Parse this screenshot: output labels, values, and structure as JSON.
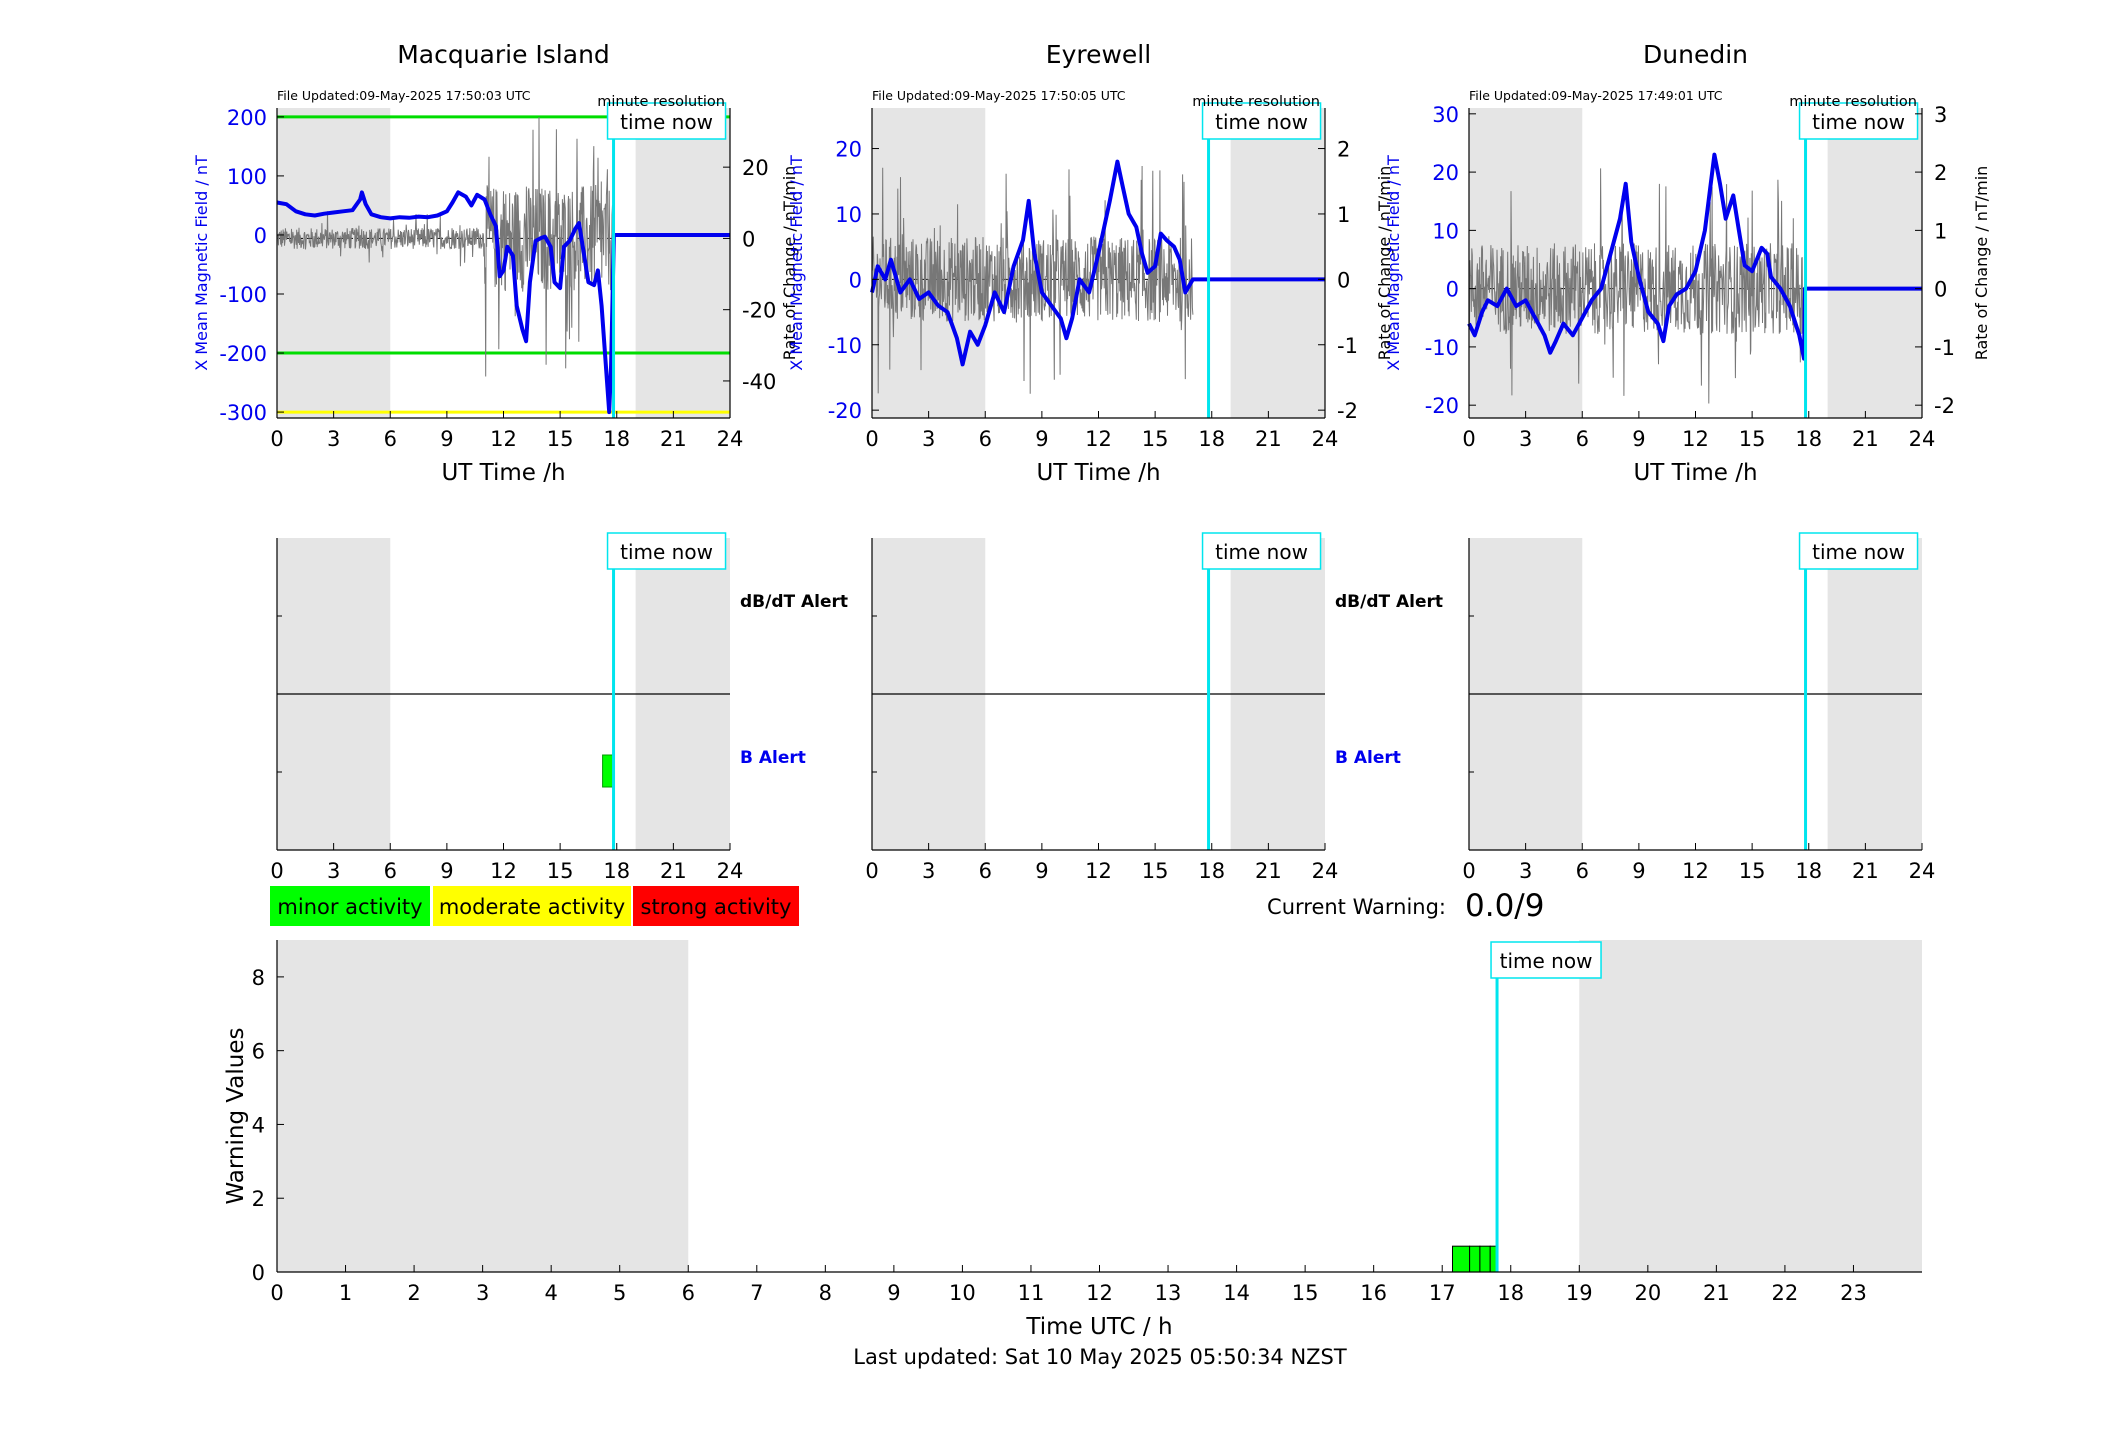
{
  "stations": [
    {
      "name": "Macquarie Island",
      "file_updated": "File Updated:09-May-2025 17:50:03 UTC",
      "resolution": "minute resolution",
      "time_now_label": "time now",
      "ylabel_left": "X Mean Magnetic Field / nT",
      "ylabel_right": "Rate of Change / nT/min",
      "xlabel": "UT Time /h",
      "dbdt_alert_label": "dB/dT Alert",
      "b_alert_label": "B Alert"
    },
    {
      "name": "Eyrewell",
      "file_updated": "File Updated:09-May-2025 17:50:05 UTC",
      "resolution": "minute resolution",
      "time_now_label": "time now",
      "ylabel_left": "X Mean Magnetic Field / nT",
      "ylabel_right": "Rate of Change / nT/min",
      "xlabel": "UT Time /h",
      "dbdt_alert_label": "dB/dT Alert",
      "b_alert_label": "B Alert"
    },
    {
      "name": "Dunedin",
      "file_updated": "File Updated:09-May-2025 17:49:01 UTC",
      "resolution": "minute resolution",
      "time_now_label": "time now",
      "ylabel_left": "X Mean Magnetic Field / nT",
      "ylabel_right": "Rate of Change / nT/min",
      "xlabel": "UT Time /h",
      "dbdt_alert_label": "dB/dT Alert",
      "b_alert_label": "B Alert"
    }
  ],
  "legend": {
    "minor": "minor activity",
    "moderate": "moderate activity",
    "strong": "strong activity",
    "colors": {
      "minor": "#00ff00",
      "moderate": "#ffff00",
      "strong": "#ff0000"
    }
  },
  "current_warning": {
    "label": "Current Warning:",
    "value": "0.0/9"
  },
  "warning_panel": {
    "ylabel": "Warning Values",
    "xlabel": "Time UTC / h",
    "time_now_label": "time now"
  },
  "last_updated": "Last updated: Sat 10 May 2025 05:50:34 NZST",
  "chart_data": [
    {
      "type": "line",
      "station": "Macquarie Island",
      "xlim": [
        0,
        24
      ],
      "xticks": [
        0,
        3,
        6,
        9,
        12,
        15,
        18,
        21,
        24
      ],
      "ylim_left": [
        -310,
        215
      ],
      "yticks_left": [
        200,
        100,
        0,
        -100,
        -200,
        -300
      ],
      "ylim_right": [
        -50.4,
        36.6
      ],
      "yticks_right": [
        20,
        0,
        -20,
        -40
      ],
      "threshold_lines": [
        {
          "y": 200,
          "color": "#00dd00"
        },
        {
          "y": -200,
          "color": "#00dd00"
        },
        {
          "y": -300,
          "color": "#ffff00"
        }
      ],
      "night_shading": [
        [
          0,
          6
        ],
        [
          19,
          24
        ]
      ],
      "time_now": 17.83,
      "series_x_field": {
        "color": "#0000ee",
        "points": [
          [
            0,
            55
          ],
          [
            0.5,
            52
          ],
          [
            1,
            40
          ],
          [
            1.5,
            35
          ],
          [
            2,
            33
          ],
          [
            2.5,
            36
          ],
          [
            3,
            38
          ],
          [
            3.5,
            40
          ],
          [
            4,
            42
          ],
          [
            4.4,
            60
          ],
          [
            4.5,
            72
          ],
          [
            4.7,
            52
          ],
          [
            5,
            35
          ],
          [
            5.5,
            30
          ],
          [
            6,
            28
          ],
          [
            6.5,
            30
          ],
          [
            7,
            29
          ],
          [
            7.5,
            31
          ],
          [
            8,
            30
          ],
          [
            8.5,
            33
          ],
          [
            9,
            40
          ],
          [
            9.3,
            55
          ],
          [
            9.6,
            72
          ],
          [
            10,
            65
          ],
          [
            10.3,
            50
          ],
          [
            10.6,
            68
          ],
          [
            11,
            60
          ],
          [
            11.3,
            35
          ],
          [
            11.6,
            15
          ],
          [
            11.8,
            -70
          ],
          [
            12,
            -60
          ],
          [
            12.2,
            -20
          ],
          [
            12.5,
            -35
          ],
          [
            12.7,
            -120
          ],
          [
            13,
            -160
          ],
          [
            13.2,
            -180
          ],
          [
            13.4,
            -80
          ],
          [
            13.7,
            -10
          ],
          [
            14,
            -5
          ],
          [
            14.2,
            -3
          ],
          [
            14.5,
            -20
          ],
          [
            14.7,
            -80
          ],
          [
            15,
            -90
          ],
          [
            15.2,
            -20
          ],
          [
            15.5,
            -10
          ],
          [
            15.8,
            10
          ],
          [
            16,
            20
          ],
          [
            16.2,
            -20
          ],
          [
            16.5,
            -80
          ],
          [
            16.8,
            -85
          ],
          [
            17,
            -60
          ],
          [
            17.2,
            -120
          ],
          [
            17.4,
            -210
          ],
          [
            17.6,
            -300
          ],
          [
            17.7,
            -220
          ],
          [
            17.85,
            0
          ],
          [
            24,
            0
          ]
        ]
      },
      "series_rate": {
        "color": "#777777",
        "amplitude_active": 25,
        "active_from": 11.0,
        "quiet_amplitude": 5,
        "flat_after": 17.85
      }
    },
    {
      "type": "line",
      "station": "Eyrewell",
      "xlim": [
        0,
        24
      ],
      "xticks": [
        0,
        3,
        6,
        9,
        12,
        15,
        18,
        21,
        24
      ],
      "ylim_left": [
        -21.2,
        26.2
      ],
      "yticks_left": [
        20,
        10,
        0,
        -10,
        -20
      ],
      "ylim_right": [
        -2.12,
        2.62
      ],
      "yticks_right": [
        2,
        1,
        0,
        -1,
        -2
      ],
      "threshold_lines": [],
      "night_shading": [
        [
          0,
          6
        ],
        [
          19,
          24
        ]
      ],
      "time_now": 17.83,
      "series_x_field": {
        "color": "#0000ee",
        "points": [
          [
            0,
            -2
          ],
          [
            0.3,
            2
          ],
          [
            0.7,
            0
          ],
          [
            1,
            3
          ],
          [
            1.5,
            -2
          ],
          [
            2,
            0
          ],
          [
            2.5,
            -3
          ],
          [
            3,
            -2
          ],
          [
            3.5,
            -4
          ],
          [
            4,
            -5
          ],
          [
            4.5,
            -9
          ],
          [
            4.8,
            -13
          ],
          [
            5.2,
            -8
          ],
          [
            5.6,
            -10
          ],
          [
            6,
            -7
          ],
          [
            6.5,
            -2
          ],
          [
            7,
            -5
          ],
          [
            7.5,
            2
          ],
          [
            8,
            6
          ],
          [
            8.3,
            12
          ],
          [
            8.6,
            4
          ],
          [
            9,
            -2
          ],
          [
            9.5,
            -4
          ],
          [
            10,
            -6
          ],
          [
            10.3,
            -9
          ],
          [
            10.6,
            -6
          ],
          [
            11,
            0
          ],
          [
            11.5,
            -2
          ],
          [
            12,
            4
          ],
          [
            12.3,
            8
          ],
          [
            12.6,
            12
          ],
          [
            13,
            18
          ],
          [
            13.3,
            14
          ],
          [
            13.6,
            10
          ],
          [
            14,
            8
          ],
          [
            14.3,
            4
          ],
          [
            14.6,
            1
          ],
          [
            15,
            2
          ],
          [
            15.3,
            7
          ],
          [
            15.6,
            6
          ],
          [
            16,
            5
          ],
          [
            16.3,
            3
          ],
          [
            16.6,
            -2
          ],
          [
            17,
            0
          ],
          [
            17.5,
            0
          ],
          [
            24,
            0
          ]
        ]
      },
      "series_rate": {
        "color": "#777777",
        "amplitude_active": 1.1,
        "active_from": 0,
        "quiet_amplitude": 0.4,
        "flat_after": 17.0
      }
    },
    {
      "type": "line",
      "station": "Dunedin",
      "xlim": [
        0,
        24
      ],
      "xticks": [
        0,
        3,
        6,
        9,
        12,
        15,
        18,
        21,
        24
      ],
      "ylim_left": [
        -22.2,
        31
      ],
      "yticks_left": [
        30,
        20,
        10,
        0,
        -10,
        -20
      ],
      "ylim_right": [
        -2.22,
        3.1
      ],
      "yticks_right": [
        3,
        2,
        1,
        0,
        -1,
        -2
      ],
      "threshold_lines": [],
      "night_shading": [
        [
          0,
          6
        ],
        [
          19,
          24
        ]
      ],
      "time_now": 17.83,
      "series_x_field": {
        "color": "#0000ee",
        "points": [
          [
            0,
            -6
          ],
          [
            0.3,
            -8
          ],
          [
            0.7,
            -4
          ],
          [
            1,
            -2
          ],
          [
            1.5,
            -3
          ],
          [
            2,
            0
          ],
          [
            2.5,
            -3
          ],
          [
            3,
            -2
          ],
          [
            3.5,
            -5
          ],
          [
            4,
            -8
          ],
          [
            4.3,
            -11
          ],
          [
            4.6,
            -9
          ],
          [
            5,
            -6
          ],
          [
            5.5,
            -8
          ],
          [
            6,
            -5
          ],
          [
            6.5,
            -2
          ],
          [
            7,
            0
          ],
          [
            7.5,
            6
          ],
          [
            8,
            12
          ],
          [
            8.3,
            18
          ],
          [
            8.6,
            8
          ],
          [
            9,
            2
          ],
          [
            9.5,
            -4
          ],
          [
            10,
            -6
          ],
          [
            10.3,
            -9
          ],
          [
            10.6,
            -3
          ],
          [
            11,
            -1
          ],
          [
            11.5,
            0
          ],
          [
            12,
            3
          ],
          [
            12.5,
            10
          ],
          [
            13,
            23
          ],
          [
            13.3,
            18
          ],
          [
            13.6,
            12
          ],
          [
            14,
            16
          ],
          [
            14.3,
            10
          ],
          [
            14.6,
            4
          ],
          [
            15,
            3
          ],
          [
            15.5,
            7
          ],
          [
            15.8,
            6
          ],
          [
            16,
            2
          ],
          [
            16.5,
            0
          ],
          [
            17,
            -3
          ],
          [
            17.5,
            -8
          ],
          [
            17.75,
            -12
          ],
          [
            17.8,
            0
          ],
          [
            24,
            0
          ]
        ]
      },
      "series_rate": {
        "color": "#777777",
        "amplitude_active": 1.3,
        "active_from": 0,
        "quiet_amplitude": 0.5,
        "flat_after": 17.8
      }
    },
    {
      "type": "bar",
      "name": "alerts",
      "panels": [
        {
          "station": "Macquarie Island",
          "b_alert_bar": {
            "x0": 17.25,
            "x1": 17.8,
            "color": "#00ff00"
          }
        },
        {
          "station": "Eyrewell",
          "b_alert_bar": null
        },
        {
          "station": "Dunedin",
          "b_alert_bar": null
        }
      ],
      "xlim": [
        0,
        24
      ],
      "xticks": [
        0,
        3,
        6,
        9,
        12,
        15,
        18,
        21,
        24
      ],
      "night_shading": [
        [
          0,
          6
        ],
        [
          19,
          24
        ]
      ],
      "time_now": 17.83
    },
    {
      "type": "bar",
      "name": "warning_values",
      "xlim": [
        0,
        24
      ],
      "ylim": [
        0,
        9
      ],
      "yticks": [
        0,
        2,
        4,
        6,
        8
      ],
      "xticks": [
        0,
        1,
        2,
        3,
        4,
        5,
        6,
        7,
        8,
        9,
        10,
        11,
        12,
        13,
        14,
        15,
        16,
        17,
        18,
        19,
        20,
        21,
        22,
        23
      ],
      "night_shading": [
        [
          0,
          6
        ],
        [
          19,
          24
        ]
      ],
      "time_now": 17.8,
      "bars": [
        {
          "x0": 17.15,
          "x1": 17.4,
          "value": 0.7
        },
        {
          "x0": 17.4,
          "x1": 17.55,
          "value": 0.7
        },
        {
          "x0": 17.55,
          "x1": 17.7,
          "value": 0.7
        },
        {
          "x0": 17.7,
          "x1": 17.8,
          "value": 0.7
        }
      ],
      "bar_color": "#00ff00"
    }
  ]
}
